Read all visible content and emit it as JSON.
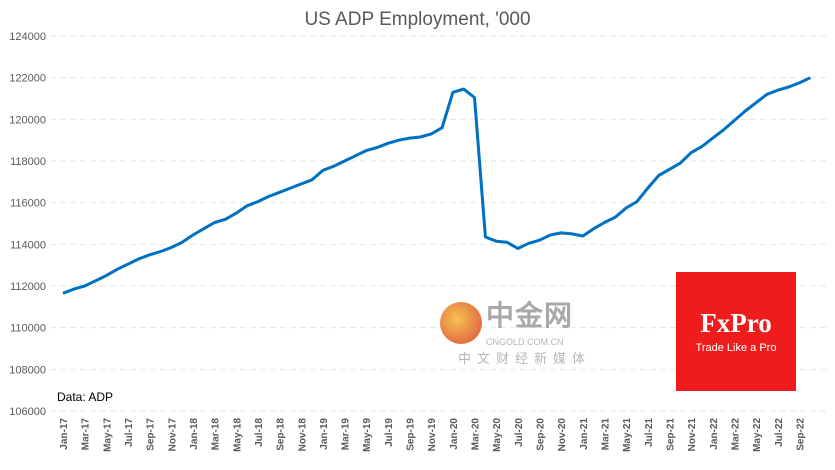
{
  "chart_data": {
    "type": "line",
    "title": "US ADP Employment, '000",
    "xlabel": "",
    "ylabel": "",
    "ylim": [
      106000,
      124000
    ],
    "yticks": [
      106000,
      108000,
      110000,
      112000,
      114000,
      116000,
      118000,
      120000,
      122000,
      124000
    ],
    "grid": true,
    "line_color": "#0070c0",
    "x_tick_labels": [
      "Jan-17",
      "Mar-17",
      "May-17",
      "Jul-17",
      "Sep-17",
      "Nov-17",
      "Jan-18",
      "Mar-18",
      "May-18",
      "Jul-18",
      "Sep-18",
      "Nov-18",
      "Jan-19",
      "Mar-19",
      "May-19",
      "Jul-19",
      "Sep-19",
      "Nov-19",
      "Jan-20",
      "Mar-20",
      "May-20",
      "Jul-20",
      "Sep-20",
      "Nov-20",
      "Jan-21",
      "Mar-21",
      "May-21",
      "Jul-21",
      "Sep-21",
      "Nov-21",
      "Jan-22",
      "Mar-22",
      "May-22",
      "Jul-22",
      "Sep-22"
    ],
    "x_start": "Jan-17",
    "frequency": "monthly",
    "values": [
      111650,
      111850,
      112000,
      112250,
      112500,
      112800,
      113050,
      113300,
      113500,
      113650,
      113850,
      114100,
      114450,
      114750,
      115050,
      115200,
      115500,
      115850,
      116050,
      116300,
      116500,
      116700,
      116900,
      117100,
      117550,
      117750,
      118000,
      118250,
      118500,
      118650,
      118850,
      119000,
      119100,
      119150,
      119300,
      119600,
      121300,
      121450,
      121050,
      114350,
      114150,
      114100,
      113800,
      114050,
      114200,
      114450,
      114550,
      114500,
      114400,
      114750,
      115050,
      115300,
      115750,
      116050,
      116700,
      117300,
      117600,
      117900,
      118400,
      118700,
      119100,
      119500,
      119950,
      120400,
      120800,
      121200,
      121400,
      121550,
      121750,
      122000
    ]
  },
  "source_note": "Data: ADP",
  "logo": {
    "brand": "FxPro",
    "tagline": "Trade Like a Pro",
    "color": "#ee1c1c"
  },
  "watermark": {
    "name": "中金网",
    "url": "CNGOLD.COM.CN",
    "sub": "中文财经新媒体"
  }
}
